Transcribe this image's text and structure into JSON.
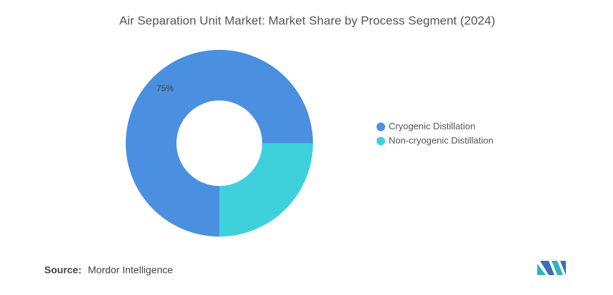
{
  "chart_data": {
    "type": "donut",
    "title": "Air Separation Unit Market: Market Share by Process Segment (2024)",
    "categories": [
      "Cryogenic Distillation",
      "Non-cryogenic Distillation"
    ],
    "values": [
      75,
      25
    ],
    "value_labels": [
      "75%",
      null
    ],
    "colors": [
      "#4a8fe0",
      "#3ed1dc"
    ],
    "source_label": "Source:",
    "source": "Mordor Intelligence"
  }
}
